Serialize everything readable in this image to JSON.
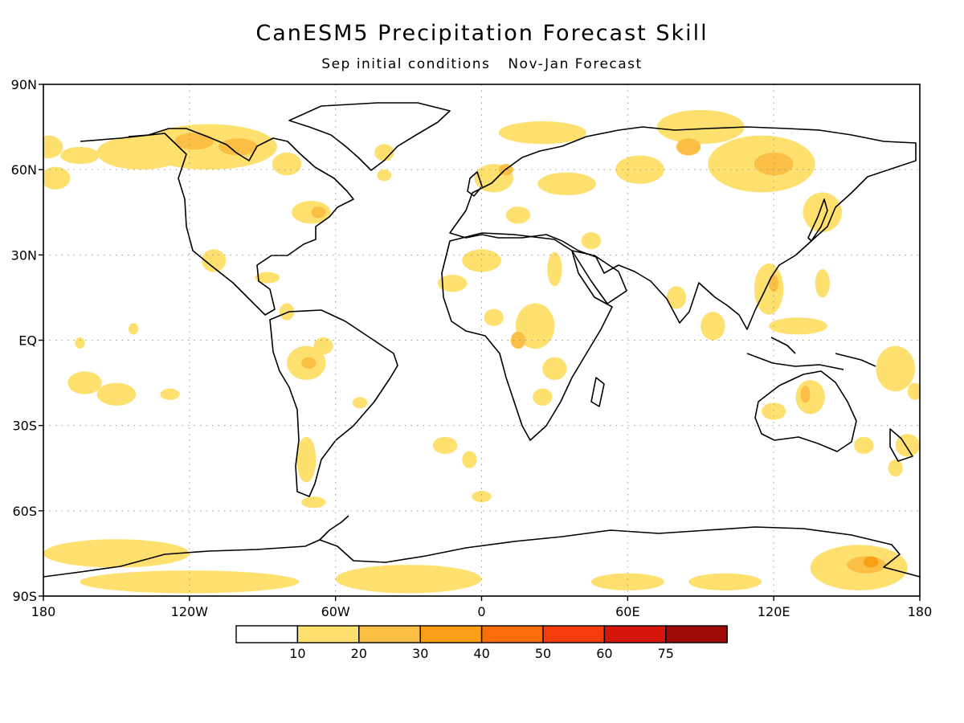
{
  "title": "CanESM5 Precipitation Forecast Skill",
  "subtitle": {
    "initial": "Sep initial conditions",
    "forecast": "Nov-Jan Forecast"
  },
  "map": {
    "projection": "equirectangular",
    "lon_range": [
      -180,
      180
    ],
    "lat_range": [
      -90,
      90
    ],
    "grid": "dotted",
    "lat_ticks": [
      {
        "value": 90,
        "label": "90N"
      },
      {
        "value": 60,
        "label": "60N"
      },
      {
        "value": 30,
        "label": "30N"
      },
      {
        "value": 0,
        "label": "EQ"
      },
      {
        "value": -30,
        "label": "30S"
      },
      {
        "value": -60,
        "label": "60S"
      },
      {
        "value": -90,
        "label": "90S"
      }
    ],
    "lon_ticks": [
      {
        "value": -180,
        "label": "180"
      },
      {
        "value": -120,
        "label": "120W"
      },
      {
        "value": -60,
        "label": "60W"
      },
      {
        "value": 0,
        "label": "0"
      },
      {
        "value": 60,
        "label": "60E"
      },
      {
        "value": 120,
        "label": "120E"
      },
      {
        "value": 180,
        "label": "180"
      }
    ],
    "skill_regions": [
      {
        "lon": -178,
        "lat": 68,
        "rx": 6,
        "ry": 4,
        "level": 1
      },
      {
        "lon": -165,
        "lat": 65,
        "rx": 8,
        "ry": 3,
        "level": 1
      },
      {
        "lon": -140,
        "lat": 66,
        "rx": 18,
        "ry": 6,
        "level": 1
      },
      {
        "lon": -112,
        "lat": 68,
        "rx": 28,
        "ry": 8,
        "level": 1
      },
      {
        "lon": -118,
        "lat": 70,
        "rx": 8,
        "ry": 3,
        "level": 2
      },
      {
        "lon": -100,
        "lat": 68,
        "rx": 8,
        "ry": 3,
        "level": 2
      },
      {
        "lon": -80,
        "lat": 62,
        "rx": 6,
        "ry": 4,
        "level": 1
      },
      {
        "lon": -70,
        "lat": 45,
        "rx": 8,
        "ry": 4,
        "level": 1
      },
      {
        "lon": -67,
        "lat": 45,
        "rx": 3,
        "ry": 2,
        "level": 2
      },
      {
        "lon": -40,
        "lat": 66,
        "rx": 4,
        "ry": 3,
        "level": 1
      },
      {
        "lon": -175,
        "lat": 57,
        "rx": 6,
        "ry": 4,
        "level": 1
      },
      {
        "lon": -110,
        "lat": 28,
        "rx": 5,
        "ry": 4,
        "level": 1
      },
      {
        "lon": -88,
        "lat": 22,
        "rx": 5,
        "ry": 2,
        "level": 1
      },
      {
        "lon": -80,
        "lat": 10,
        "rx": 3,
        "ry": 3,
        "level": 1
      },
      {
        "lon": -72,
        "lat": -8,
        "rx": 8,
        "ry": 6,
        "level": 1
      },
      {
        "lon": -71,
        "lat": -8,
        "rx": 3,
        "ry": 2,
        "level": 2
      },
      {
        "lon": -65,
        "lat": -2,
        "rx": 4,
        "ry": 3,
        "level": 1
      },
      {
        "lon": -72,
        "lat": -42,
        "rx": 4,
        "ry": 8,
        "level": 1
      },
      {
        "lon": -69,
        "lat": -57,
        "rx": 5,
        "ry": 2,
        "level": 1
      },
      {
        "lon": -50,
        "lat": -22,
        "rx": 3,
        "ry": 2,
        "level": 1
      },
      {
        "lon": -163,
        "lat": -15,
        "rx": 7,
        "ry": 4,
        "level": 1
      },
      {
        "lon": -150,
        "lat": -19,
        "rx": 8,
        "ry": 4,
        "level": 1
      },
      {
        "lon": -128,
        "lat": -19,
        "rx": 4,
        "ry": 2,
        "level": 1
      },
      {
        "lon": -165,
        "lat": -1,
        "rx": 2,
        "ry": 2,
        "level": 1
      },
      {
        "lon": -143,
        "lat": 4,
        "rx": 2,
        "ry": 2,
        "level": 1
      },
      {
        "lon": -15,
        "lat": -37,
        "rx": 5,
        "ry": 3,
        "level": 1
      },
      {
        "lon": -5,
        "lat": -42,
        "rx": 3,
        "ry": 3,
        "level": 1
      },
      {
        "lon": 0,
        "lat": -55,
        "rx": 4,
        "ry": 2,
        "level": 1
      },
      {
        "lon": -40,
        "lat": 58,
        "rx": 3,
        "ry": 2,
        "level": 1
      },
      {
        "lon": 5,
        "lat": 57,
        "rx": 8,
        "ry": 5,
        "level": 1
      },
      {
        "lon": 10,
        "lat": 60,
        "rx": 3,
        "ry": 2,
        "level": 2
      },
      {
        "lon": 15,
        "lat": 44,
        "rx": 5,
        "ry": 3,
        "level": 1
      },
      {
        "lon": 25,
        "lat": 73,
        "rx": 18,
        "ry": 4,
        "level": 1
      },
      {
        "lon": 35,
        "lat": 55,
        "rx": 12,
        "ry": 4,
        "level": 1
      },
      {
        "lon": 65,
        "lat": 60,
        "rx": 10,
        "ry": 5,
        "level": 1
      },
      {
        "lon": 90,
        "lat": 75,
        "rx": 18,
        "ry": 6,
        "level": 1
      },
      {
        "lon": 115,
        "lat": 62,
        "rx": 22,
        "ry": 10,
        "level": 1
      },
      {
        "lon": 120,
        "lat": 62,
        "rx": 8,
        "ry": 4,
        "level": 2
      },
      {
        "lon": 85,
        "lat": 68,
        "rx": 5,
        "ry": 3,
        "level": 2
      },
      {
        "lon": 140,
        "lat": 45,
        "rx": 8,
        "ry": 7,
        "level": 1
      },
      {
        "lon": 0,
        "lat": 28,
        "rx": 8,
        "ry": 4,
        "level": 1
      },
      {
        "lon": -12,
        "lat": 20,
        "rx": 6,
        "ry": 3,
        "level": 1
      },
      {
        "lon": 22,
        "lat": 5,
        "rx": 8,
        "ry": 8,
        "level": 1
      },
      {
        "lon": 15,
        "lat": 0,
        "rx": 3,
        "ry": 3,
        "level": 2
      },
      {
        "lon": 30,
        "lat": 25,
        "rx": 3,
        "ry": 6,
        "level": 1
      },
      {
        "lon": 5,
        "lat": 8,
        "rx": 4,
        "ry": 3,
        "level": 1
      },
      {
        "lon": 30,
        "lat": -10,
        "rx": 5,
        "ry": 4,
        "level": 1
      },
      {
        "lon": 25,
        "lat": -20,
        "rx": 4,
        "ry": 3,
        "level": 1
      },
      {
        "lon": 45,
        "lat": 35,
        "rx": 4,
        "ry": 3,
        "level": 1
      },
      {
        "lon": 80,
        "lat": 15,
        "rx": 4,
        "ry": 4,
        "level": 1
      },
      {
        "lon": 95,
        "lat": 5,
        "rx": 5,
        "ry": 5,
        "level": 1
      },
      {
        "lon": 118,
        "lat": 18,
        "rx": 6,
        "ry": 9,
        "level": 1
      },
      {
        "lon": 120,
        "lat": 20,
        "rx": 2,
        "ry": 3,
        "level": 2
      },
      {
        "lon": 140,
        "lat": 20,
        "rx": 3,
        "ry": 5,
        "level": 1
      },
      {
        "lon": 130,
        "lat": 5,
        "rx": 12,
        "ry": 3,
        "level": 1
      },
      {
        "lon": 170,
        "lat": -10,
        "rx": 8,
        "ry": 8,
        "level": 1
      },
      {
        "lon": 135,
        "lat": -20,
        "rx": 6,
        "ry": 6,
        "level": 1
      },
      {
        "lon": 133,
        "lat": -19,
        "rx": 2,
        "ry": 3,
        "level": 2
      },
      {
        "lon": 120,
        "lat": -25,
        "rx": 5,
        "ry": 3,
        "level": 1
      },
      {
        "lon": 175,
        "lat": -37,
        "rx": 5,
        "ry": 4,
        "level": 1
      },
      {
        "lon": 170,
        "lat": -45,
        "rx": 3,
        "ry": 3,
        "level": 1
      },
      {
        "lon": 157,
        "lat": -37,
        "rx": 4,
        "ry": 3,
        "level": 1
      },
      {
        "lon": 178,
        "lat": -18,
        "rx": 3,
        "ry": 3,
        "level": 1
      },
      {
        "lon": -150,
        "lat": -75,
        "rx": 30,
        "ry": 5,
        "level": 1
      },
      {
        "lon": -120,
        "lat": -85,
        "rx": 45,
        "ry": 4,
        "level": 1
      },
      {
        "lon": -30,
        "lat": -84,
        "rx": 30,
        "ry": 5,
        "level": 1
      },
      {
        "lon": 60,
        "lat": -85,
        "rx": 15,
        "ry": 3,
        "level": 1
      },
      {
        "lon": 100,
        "lat": -85,
        "rx": 15,
        "ry": 3,
        "level": 1
      },
      {
        "lon": 155,
        "lat": -80,
        "rx": 20,
        "ry": 8,
        "level": 1
      },
      {
        "lon": 158,
        "lat": -79,
        "rx": 8,
        "ry": 3,
        "level": 2
      },
      {
        "lon": 160,
        "lat": -78,
        "rx": 3,
        "ry": 2,
        "level": 3
      }
    ]
  },
  "colorbar": {
    "labels": [
      "10",
      "20",
      "30",
      "40",
      "50",
      "60",
      "75"
    ],
    "colors": [
      "#ffffff",
      "#fde06e",
      "#fbbf45",
      "#fa9f15",
      "#fa6e0a",
      "#f43d0a",
      "#d5140a",
      "#9e0a08"
    ]
  }
}
